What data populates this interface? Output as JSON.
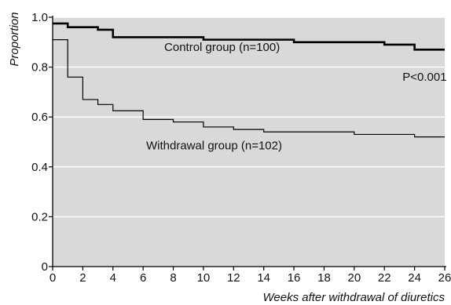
{
  "chart_data": {
    "type": "line",
    "step": true,
    "xlabel": "Weeks after withdrawal of diuretics",
    "ylabel": "Proportion",
    "xlim": [
      0,
      26
    ],
    "ylim": [
      0,
      1.0
    ],
    "xticks": [
      "0",
      "2",
      "4",
      "6",
      "8",
      "10",
      "12",
      "14",
      "16",
      "18",
      "20",
      "22",
      "24",
      "26"
    ],
    "yticks": [
      "0",
      "0.2",
      "0.4",
      "0.6",
      "0.8",
      "1.0"
    ],
    "grid": "horizontal",
    "colors": {
      "plot_background": "#d9d9d9",
      "gridline": "#ffffff",
      "series": "#000000"
    },
    "series": [
      {
        "name": "Control group (n=100)",
        "line_weight": "thick",
        "points": [
          [
            0,
            0.975
          ],
          [
            1,
            0.96
          ],
          [
            3,
            0.95
          ],
          [
            4,
            0.92
          ],
          [
            10,
            0.91
          ],
          [
            16,
            0.9
          ],
          [
            22,
            0.89
          ],
          [
            24,
            0.87
          ],
          [
            26,
            0.87
          ]
        ]
      },
      {
        "name": "Withdrawal group (n=102)",
        "line_weight": "thin",
        "points": [
          [
            0,
            0.91
          ],
          [
            1,
            0.76
          ],
          [
            2,
            0.67
          ],
          [
            3,
            0.65
          ],
          [
            4,
            0.625
          ],
          [
            6,
            0.59
          ],
          [
            8,
            0.58
          ],
          [
            10,
            0.56
          ],
          [
            12,
            0.55
          ],
          [
            14,
            0.54
          ],
          [
            20,
            0.53
          ],
          [
            24,
            0.52
          ],
          [
            26,
            0.52
          ]
        ]
      }
    ],
    "annotations": [
      {
        "text": "Control group (n=100)",
        "x": 7.4,
        "y": 0.865,
        "anchor": "start"
      },
      {
        "text": "Withdrawal group (n=102)",
        "x": 6.2,
        "y": 0.47,
        "anchor": "start"
      },
      {
        "text": "P<0.001",
        "x": 23.2,
        "y": 0.745,
        "anchor": "start"
      }
    ]
  }
}
